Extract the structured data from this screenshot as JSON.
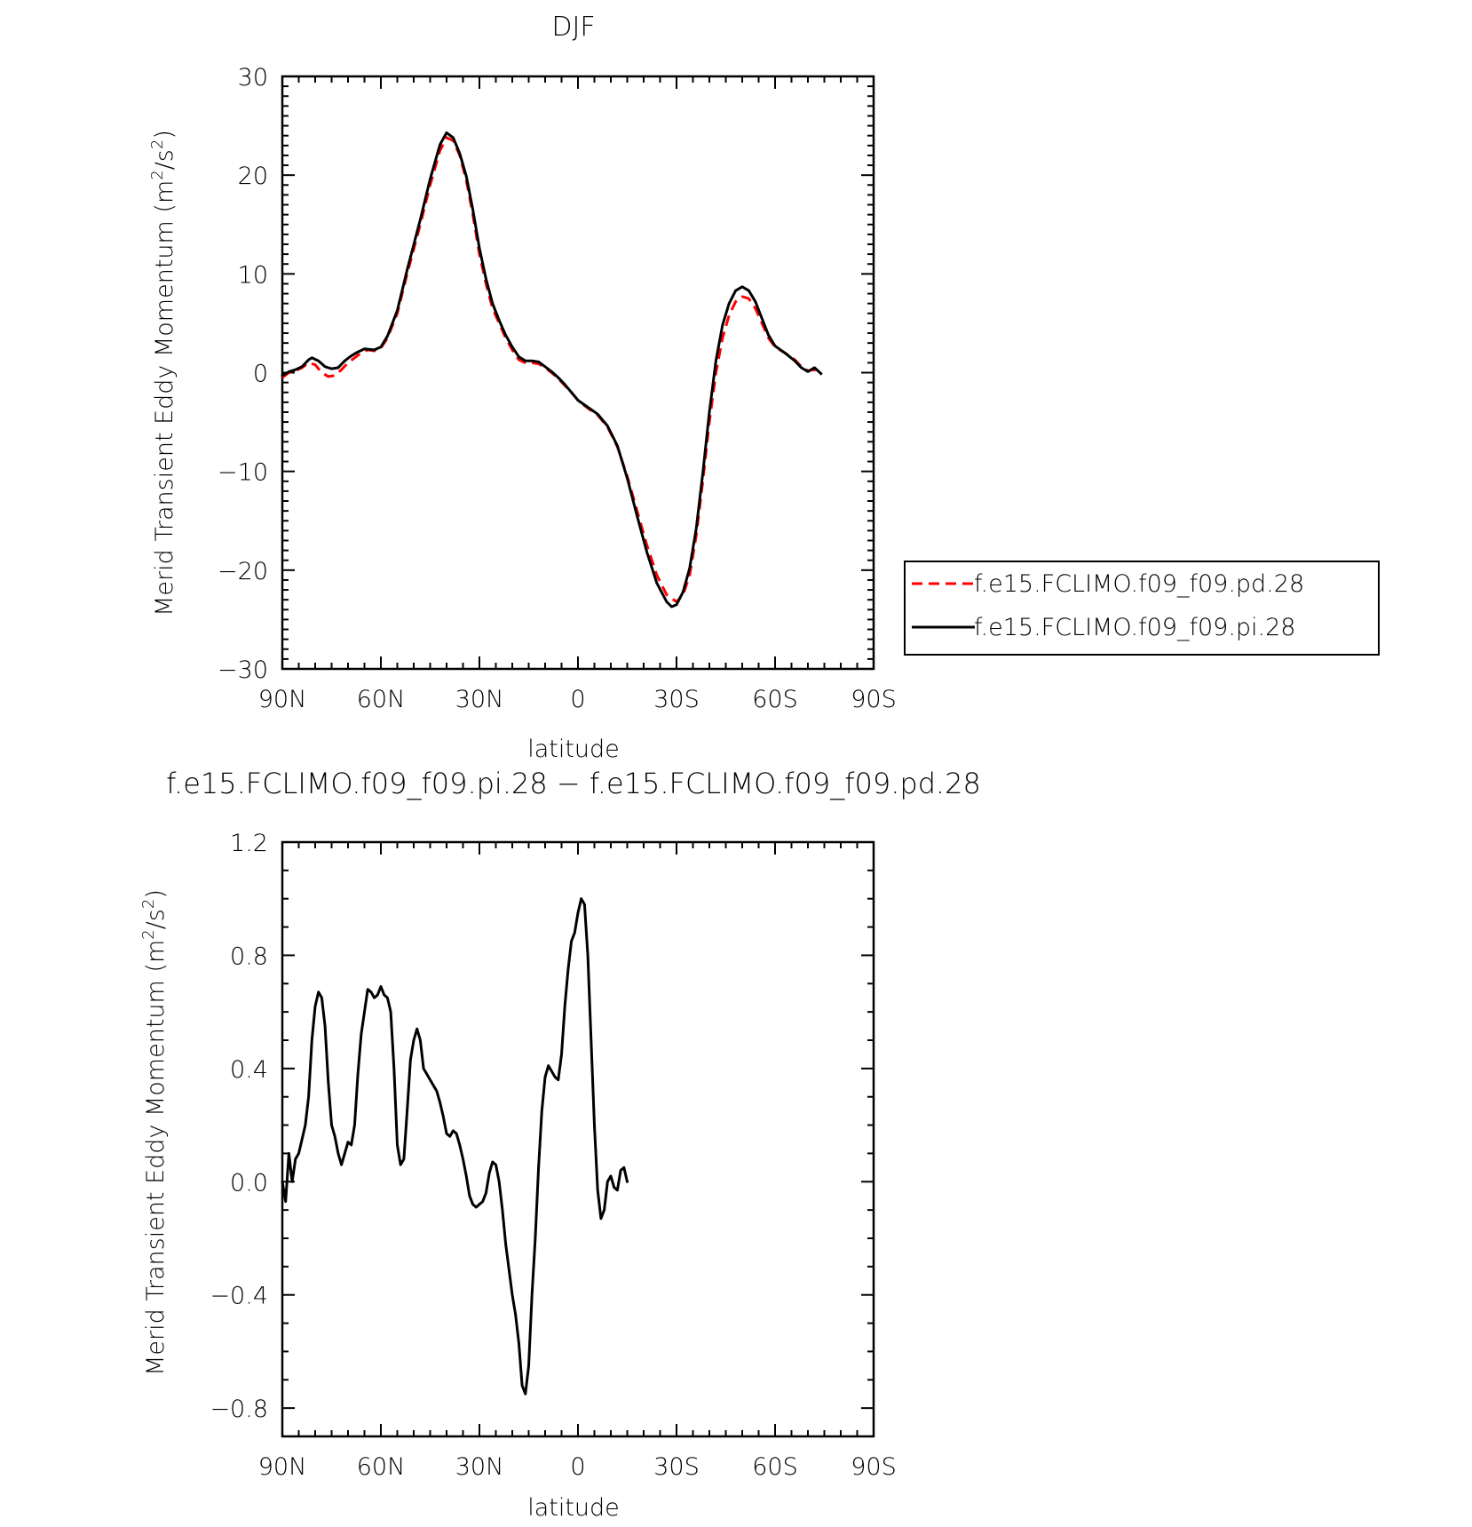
{
  "chart_data": [
    {
      "type": "line",
      "title": "DJF",
      "xlabel": "latitude",
      "ylabel": "Merid Transient Eddy Momentum (m²/s²)",
      "ylabel_parts": [
        "Merid Transient Eddy Momentum (m",
        "2",
        "/s",
        "2",
        ")"
      ],
      "xlim": [
        90,
        -90
      ],
      "ylim": [
        -30,
        30
      ],
      "x_ticks": [
        90,
        60,
        30,
        0,
        -30,
        -60,
        -90
      ],
      "x_tick_labels": [
        "90N",
        "60N",
        "30N",
        "0",
        "30S",
        "60S",
        "90S"
      ],
      "y_ticks": [
        -30,
        -20,
        -10,
        0,
        10,
        20,
        30
      ],
      "y_tick_labels": [
        "−30",
        "−20",
        "−10",
        "0",
        "10",
        "20",
        "30"
      ],
      "legend_position": "right",
      "series": [
        {
          "name": "f.e15.FCLIMO.f09_f09.pd.28",
          "color": "#ff0000",
          "style": "dashed",
          "points": [
            [
              90,
              -0.5
            ],
            [
              88,
              0
            ],
            [
              86,
              0.2
            ],
            [
              84,
              0.5
            ],
            [
              82,
              1.0
            ],
            [
              80,
              0.8
            ],
            [
              78,
              0
            ],
            [
              76,
              -0.4
            ],
            [
              74,
              -0.3
            ],
            [
              72,
              0.3
            ],
            [
              70,
              1.0
            ],
            [
              68,
              1.5
            ],
            [
              66,
              2.0
            ],
            [
              64,
              2.3
            ],
            [
              62,
              2.2
            ],
            [
              60,
              2.5
            ],
            [
              58,
              3.5
            ],
            [
              55,
              6
            ],
            [
              52,
              10
            ],
            [
              48,
              15
            ],
            [
              45,
              19
            ],
            [
              42,
              22.5
            ],
            [
              40,
              23.8
            ],
            [
              38,
              23.5
            ],
            [
              36,
              22
            ],
            [
              34,
              19.5
            ],
            [
              32,
              16
            ],
            [
              30,
              12
            ],
            [
              28,
              9
            ],
            [
              26,
              6.5
            ],
            [
              24,
              5
            ],
            [
              22,
              3.5
            ],
            [
              20,
              2.3
            ],
            [
              18,
              1.3
            ],
            [
              16,
              1.0
            ],
            [
              14,
              1.0
            ],
            [
              12,
              0.9
            ],
            [
              10,
              0.5
            ],
            [
              8,
              0
            ],
            [
              6,
              -0.6
            ],
            [
              4,
              -1.3
            ],
            [
              2,
              -2
            ],
            [
              0,
              -2.8
            ],
            [
              -3,
              -3.6
            ],
            [
              -6,
              -4.3
            ],
            [
              -9,
              -5.5
            ],
            [
              -12,
              -7.5
            ],
            [
              -15,
              -10.5
            ],
            [
              -18,
              -14
            ],
            [
              -21,
              -17.5
            ],
            [
              -24,
              -20.5
            ],
            [
              -27,
              -22.5
            ],
            [
              -30,
              -23.2
            ],
            [
              -32,
              -22.5
            ],
            [
              -34,
              -20.5
            ],
            [
              -36,
              -16.5
            ],
            [
              -38,
              -11
            ],
            [
              -40,
              -5
            ],
            [
              -42,
              0
            ],
            [
              -44,
              3.5
            ],
            [
              -46,
              5.8
            ],
            [
              -48,
              7.2
            ],
            [
              -50,
              7.7
            ],
            [
              -52,
              7.5
            ],
            [
              -54,
              6.5
            ],
            [
              -56,
              5
            ],
            [
              -58,
              3.5
            ],
            [
              -60,
              2.6
            ],
            [
              -63,
              2.0
            ],
            [
              -66,
              1.3
            ],
            [
              -68,
              0.6
            ],
            [
              -70,
              0.2
            ],
            [
              -72,
              0.3
            ],
            [
              -74,
              -0.2
            ]
          ]
        },
        {
          "name": "f.e15.FCLIMO.f09_f09.pi.28",
          "color": "#000000",
          "style": "solid",
          "points": [
            [
              90,
              -0.3
            ],
            [
              88,
              0.1
            ],
            [
              86,
              0.3
            ],
            [
              84,
              0.6
            ],
            [
              82,
              1.3
            ],
            [
              81,
              1.5
            ],
            [
              79,
              1.2
            ],
            [
              77,
              0.6
            ],
            [
              75,
              0.4
            ],
            [
              73,
              0.5
            ],
            [
              71,
              1.2
            ],
            [
              69,
              1.7
            ],
            [
              67,
              2.1
            ],
            [
              65,
              2.4
            ],
            [
              62,
              2.3
            ],
            [
              60,
              2.6
            ],
            [
              58,
              3.7
            ],
            [
              55,
              6.3
            ],
            [
              52,
              10.4
            ],
            [
              48,
              15.5
            ],
            [
              45,
              19.6
            ],
            [
              42,
              23.1
            ],
            [
              40,
              24.3
            ],
            [
              38,
              23.8
            ],
            [
              36,
              22.2
            ],
            [
              34,
              19.9
            ],
            [
              32,
              16.5
            ],
            [
              30,
              12.6
            ],
            [
              28,
              9.5
            ],
            [
              26,
              7
            ],
            [
              24,
              5.3
            ],
            [
              22,
              3.8
            ],
            [
              20,
              2.6
            ],
            [
              18,
              1.6
            ],
            [
              16,
              1.2
            ],
            [
              14,
              1.2
            ],
            [
              12,
              1.1
            ],
            [
              10,
              0.6
            ],
            [
              8,
              0.1
            ],
            [
              6,
              -0.5
            ],
            [
              4,
              -1.2
            ],
            [
              2,
              -2
            ],
            [
              0,
              -2.8
            ],
            [
              -3,
              -3.5
            ],
            [
              -6,
              -4.2
            ],
            [
              -9,
              -5.4
            ],
            [
              -12,
              -7.4
            ],
            [
              -15,
              -10.7
            ],
            [
              -18,
              -14.5
            ],
            [
              -21,
              -18.2
            ],
            [
              -24,
              -21.3
            ],
            [
              -27,
              -23.2
            ],
            [
              -28.5,
              -23.7
            ],
            [
              -30,
              -23.5
            ],
            [
              -32,
              -22.2
            ],
            [
              -34,
              -19.8
            ],
            [
              -36,
              -15.8
            ],
            [
              -38,
              -10.2
            ],
            [
              -40,
              -4
            ],
            [
              -42,
              1.2
            ],
            [
              -44,
              4.8
            ],
            [
              -46,
              7.0
            ],
            [
              -48,
              8.3
            ],
            [
              -50,
              8.7
            ],
            [
              -52,
              8.3
            ],
            [
              -54,
              7.2
            ],
            [
              -56,
              5.5
            ],
            [
              -58,
              3.8
            ],
            [
              -60,
              2.7
            ],
            [
              -63,
              2.0
            ],
            [
              -66,
              1.2
            ],
            [
              -68,
              0.5
            ],
            [
              -70,
              0.1
            ],
            [
              -72,
              0.5
            ],
            [
              -74,
              -0.1
            ]
          ]
        }
      ]
    },
    {
      "type": "line",
      "title": "f.e15.FCLIMO.f09_f09.pi.28 − f.e15.FCLIMO.f09_f09.pd.28",
      "xlabel": "latitude",
      "ylabel": "Merid Transient Eddy Momentum (m²/s²)",
      "ylabel_parts": [
        "Merid Transient Eddy Momentum (m",
        "2",
        "/s",
        "2",
        ")"
      ],
      "xlim": [
        90,
        -90
      ],
      "ylim": [
        -0.9,
        1.2
      ],
      "x_ticks": [
        90,
        60,
        30,
        0,
        -30,
        -60,
        -90
      ],
      "x_tick_labels": [
        "90N",
        "60N",
        "30N",
        "0",
        "30S",
        "60S",
        "90S"
      ],
      "y_ticks": [
        -0.8,
        -0.4,
        0,
        0.4,
        0.8,
        1.2
      ],
      "y_tick_labels": [
        "−0.8",
        "−0.4",
        "0.0",
        "0.4",
        "0.8",
        "1.2"
      ],
      "series": [
        {
          "name": "",
          "color": "#000000",
          "style": "solid",
          "points": [
            [
              90,
              0
            ],
            [
              89,
              -0.07
            ],
            [
              88,
              0.1
            ],
            [
              87,
              0
            ],
            [
              86,
              0.08
            ],
            [
              85,
              0.1
            ],
            [
              84,
              0.15
            ],
            [
              83,
              0.2
            ],
            [
              82,
              0.3
            ],
            [
              81,
              0.5
            ],
            [
              80,
              0.62
            ],
            [
              79,
              0.67
            ],
            [
              78,
              0.65
            ],
            [
              77,
              0.55
            ],
            [
              76,
              0.35
            ],
            [
              75,
              0.2
            ],
            [
              74,
              0.16
            ],
            [
              73,
              0.1
            ],
            [
              72,
              0.06
            ],
            [
              71,
              0.1
            ],
            [
              70,
              0.14
            ],
            [
              69,
              0.13
            ],
            [
              68,
              0.2
            ],
            [
              67,
              0.38
            ],
            [
              66,
              0.52
            ],
            [
              65,
              0.6
            ],
            [
              64,
              0.68
            ],
            [
              63,
              0.67
            ],
            [
              62,
              0.65
            ],
            [
              61,
              0.66
            ],
            [
              60,
              0.69
            ],
            [
              59,
              0.66
            ],
            [
              58,
              0.65
            ],
            [
              57,
              0.6
            ],
            [
              56,
              0.4
            ],
            [
              55,
              0.13
            ],
            [
              54,
              0.06
            ],
            [
              53,
              0.08
            ],
            [
              52,
              0.25
            ],
            [
              51,
              0.43
            ],
            [
              50,
              0.5
            ],
            [
              49,
              0.54
            ],
            [
              48,
              0.5
            ],
            [
              47,
              0.4
            ],
            [
              46,
              0.38
            ],
            [
              45,
              0.36
            ],
            [
              44,
              0.34
            ],
            [
              43,
              0.32
            ],
            [
              42,
              0.28
            ],
            [
              41,
              0.23
            ],
            [
              40,
              0.17
            ],
            [
              39,
              0.16
            ],
            [
              38,
              0.18
            ],
            [
              37,
              0.17
            ],
            [
              36,
              0.13
            ],
            [
              35,
              0.08
            ],
            [
              34,
              0.02
            ],
            [
              33,
              -0.05
            ],
            [
              32,
              -0.08
            ],
            [
              31,
              -0.09
            ],
            [
              30,
              -0.08
            ],
            [
              29,
              -0.07
            ],
            [
              28,
              -0.04
            ],
            [
              27,
              0.03
            ],
            [
              26,
              0.07
            ],
            [
              25,
              0.06
            ],
            [
              24,
              0
            ],
            [
              23,
              -0.1
            ],
            [
              22,
              -0.22
            ],
            [
              21,
              -0.31
            ],
            [
              20,
              -0.4
            ],
            [
              19,
              -0.47
            ],
            [
              18,
              -0.57
            ],
            [
              17,
              -0.72
            ],
            [
              16,
              -0.75
            ],
            [
              15,
              -0.65
            ],
            [
              14,
              -0.4
            ],
            [
              13,
              -0.2
            ],
            [
              12,
              0.05
            ],
            [
              11,
              0.25
            ],
            [
              10,
              0.37
            ],
            [
              9,
              0.41
            ],
            [
              8,
              0.39
            ],
            [
              7,
              0.37
            ],
            [
              6,
              0.36
            ],
            [
              5,
              0.45
            ],
            [
              4,
              0.62
            ],
            [
              3,
              0.75
            ],
            [
              2,
              0.85
            ],
            [
              1,
              0.88
            ],
            [
              0,
              0.95
            ],
            [
              -1,
              1.0
            ],
            [
              -2,
              0.98
            ],
            [
              -3,
              0.8
            ],
            [
              -4,
              0.5
            ],
            [
              -5,
              0.2
            ],
            [
              -6,
              -0.03
            ],
            [
              -7,
              -0.13
            ],
            [
              -8,
              -0.1
            ],
            [
              -9,
              0
            ],
            [
              -10,
              0.02
            ],
            [
              -11,
              -0.02
            ],
            [
              -12,
              -0.03
            ],
            [
              -13,
              0.04
            ],
            [
              -14,
              0.05
            ],
            [
              -15,
              0
            ]
          ]
        }
      ]
    }
  ]
}
